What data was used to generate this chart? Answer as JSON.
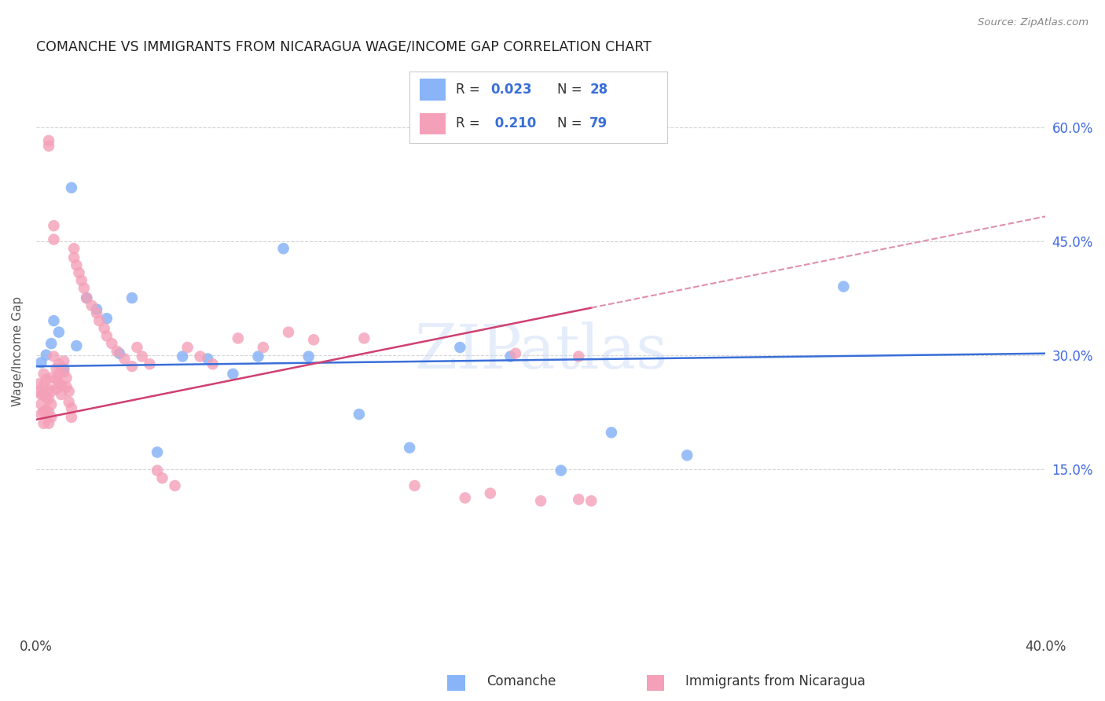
{
  "title": "COMANCHE VS IMMIGRANTS FROM NICARAGUA WAGE/INCOME GAP CORRELATION CHART",
  "source": "Source: ZipAtlas.com",
  "ylabel": "Wage/Income Gap",
  "watermark": "ZIPatlas",
  "color_comanche": "#89b4f7",
  "color_nicaragua": "#f4a0b8",
  "color_trend_comanche": "#3a6fd8",
  "color_trend_nicaragua": "#d04070",
  "color_trend_ext": "#e090a8",
  "background_color": "#ffffff",
  "grid_color": "#cccccc",
  "xlim": [
    0.0,
    0.4
  ],
  "ylim": [
    -0.07,
    0.68
  ],
  "yticks": [
    0.15,
    0.3,
    0.45,
    0.6
  ],
  "ytick_labels": [
    "15.0%",
    "30.0%",
    "45.0%",
    "60.0%"
  ],
  "comanche_x": [
    0.002,
    0.004,
    0.006,
    0.007,
    0.009,
    0.011,
    0.014,
    0.016,
    0.02,
    0.024,
    0.028,
    0.033,
    0.038,
    0.048,
    0.058,
    0.068,
    0.078,
    0.088,
    0.098,
    0.108,
    0.128,
    0.148,
    0.168,
    0.188,
    0.208,
    0.228,
    0.258,
    0.32
  ],
  "comanche_y": [
    0.29,
    0.3,
    0.315,
    0.345,
    0.33,
    0.282,
    0.52,
    0.312,
    0.375,
    0.36,
    0.348,
    0.302,
    0.375,
    0.172,
    0.298,
    0.295,
    0.275,
    0.298,
    0.44,
    0.298,
    0.222,
    0.178,
    0.31,
    0.298,
    0.148,
    0.198,
    0.168,
    0.39
  ],
  "nicaragua_x": [
    0.001,
    0.001,
    0.002,
    0.002,
    0.002,
    0.003,
    0.003,
    0.003,
    0.003,
    0.003,
    0.004,
    0.004,
    0.004,
    0.005,
    0.005,
    0.005,
    0.005,
    0.005,
    0.005,
    0.006,
    0.006,
    0.006,
    0.006,
    0.007,
    0.007,
    0.007,
    0.008,
    0.008,
    0.008,
    0.009,
    0.009,
    0.009,
    0.01,
    0.01,
    0.011,
    0.011,
    0.012,
    0.012,
    0.013,
    0.013,
    0.014,
    0.014,
    0.015,
    0.015,
    0.016,
    0.017,
    0.018,
    0.019,
    0.02,
    0.022,
    0.024,
    0.025,
    0.027,
    0.028,
    0.03,
    0.032,
    0.035,
    0.038,
    0.04,
    0.042,
    0.045,
    0.048,
    0.05,
    0.055,
    0.06,
    0.065,
    0.07,
    0.08,
    0.09,
    0.1,
    0.11,
    0.13,
    0.15,
    0.18,
    0.2,
    0.215,
    0.22,
    0.17,
    0.19,
    0.215
  ],
  "nicaragua_y": [
    0.262,
    0.252,
    0.248,
    0.235,
    0.222,
    0.275,
    0.26,
    0.248,
    0.225,
    0.21,
    0.268,
    0.245,
    0.228,
    0.582,
    0.575,
    0.255,
    0.242,
    0.225,
    0.21,
    0.27,
    0.252,
    0.235,
    0.218,
    0.47,
    0.452,
    0.298,
    0.282,
    0.268,
    0.255,
    0.288,
    0.275,
    0.262,
    0.26,
    0.248,
    0.292,
    0.278,
    0.27,
    0.258,
    0.252,
    0.238,
    0.23,
    0.218,
    0.44,
    0.428,
    0.418,
    0.408,
    0.398,
    0.388,
    0.375,
    0.365,
    0.355,
    0.345,
    0.335,
    0.325,
    0.315,
    0.305,
    0.295,
    0.285,
    0.31,
    0.298,
    0.288,
    0.148,
    0.138,
    0.128,
    0.31,
    0.298,
    0.288,
    0.322,
    0.31,
    0.33,
    0.32,
    0.322,
    0.128,
    0.118,
    0.108,
    0.298,
    0.108,
    0.112,
    0.302,
    0.11
  ]
}
